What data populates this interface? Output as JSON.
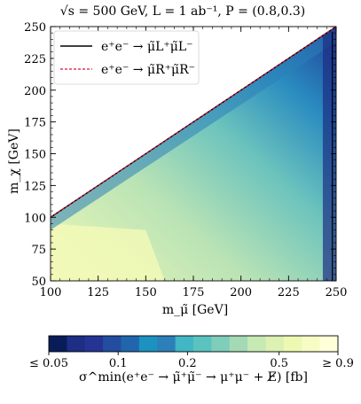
{
  "chart_data": {
    "type": "heatmap",
    "title": "√s = 500 GeV, L = 1 ab⁻¹, P = (0.8,0.3)",
    "xlabel": "m_μ̃ [GeV]",
    "ylabel": "m_χ [GeV]",
    "xlim": [
      100,
      250
    ],
    "ylim": [
      50,
      250
    ],
    "x_ticks": [
      "100",
      "125",
      "150",
      "175",
      "200",
      "225",
      "250"
    ],
    "y_ticks": [
      "50",
      "75",
      "100",
      "125",
      "150",
      "175",
      "200",
      "225",
      "250"
    ],
    "grid": false,
    "legend_position": "top-left",
    "series": [
      {
        "name": "e⁺e⁻ → μ̃L⁺μ̃L⁻",
        "style": "solid",
        "color": "#000000",
        "x": [
          100,
          250
        ],
        "y": [
          100,
          250
        ]
      },
      {
        "name": "e⁺e⁻ → μ̃R⁺μ̃R⁻",
        "style": "dashed",
        "color": "#dc143c",
        "x": [
          100,
          250
        ],
        "y": [
          100,
          250
        ]
      }
    ],
    "colorbar": {
      "label": "σ^min(e⁺e⁻ → μ̃⁺μ̃⁻ → μ⁺μ⁻ + E̸) [fb]",
      "ticks": [
        "≤ 0.05",
        "0.1",
        "0.2",
        "0.5",
        "≥ 0.9"
      ],
      "tick_values": [
        0.05,
        0.1,
        0.2,
        0.5,
        0.9
      ],
      "scale": "log",
      "colors": [
        "#081d58",
        "#1d2e84",
        "#253494",
        "#234d9f",
        "#2166ac",
        "#1d91c0",
        "#2c7fb8",
        "#41b6c4",
        "#5ac3c0",
        "#7fcdbb",
        "#a3dab5",
        "#c7e9b4",
        "#dcf1b2",
        "#edf8b1",
        "#f7fcc4",
        "#ffffd9"
      ]
    }
  }
}
